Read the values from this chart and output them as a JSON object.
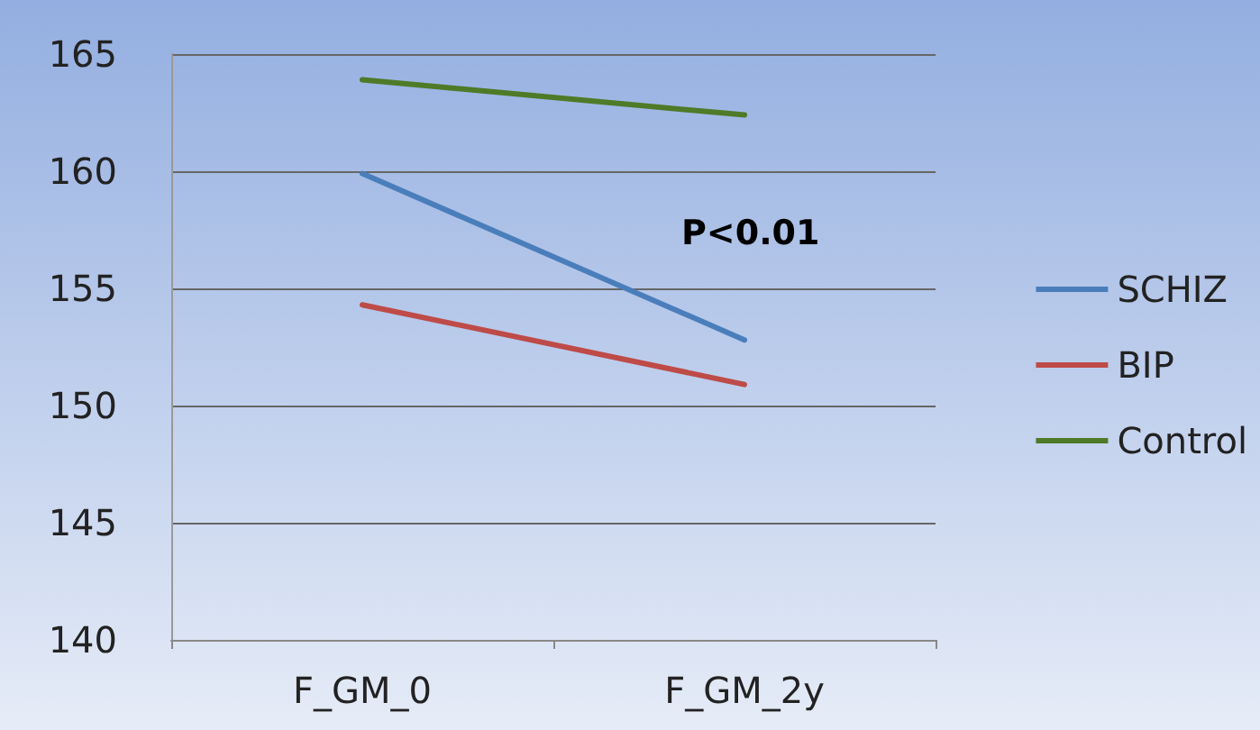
{
  "chart_data": {
    "type": "line",
    "categories": [
      "F_GM_0",
      "F_GM_2y"
    ],
    "series": [
      {
        "name": "SCHIZ",
        "color": "#4a7ebb",
        "values": [
          159.9,
          152.8
        ]
      },
      {
        "name": "BIP",
        "color": "#be4b48",
        "values": [
          154.3,
          150.9
        ]
      },
      {
        "name": "Control",
        "color": "#4f7a28",
        "values": [
          163.9,
          162.4
        ]
      }
    ],
    "ylim": [
      140,
      165
    ],
    "yticks": [
      140,
      145,
      150,
      155,
      160,
      165
    ],
    "grid": "y",
    "legend": "right",
    "marker": "none",
    "line_style": "solid",
    "annotations": [
      "P<0.01"
    ]
  }
}
